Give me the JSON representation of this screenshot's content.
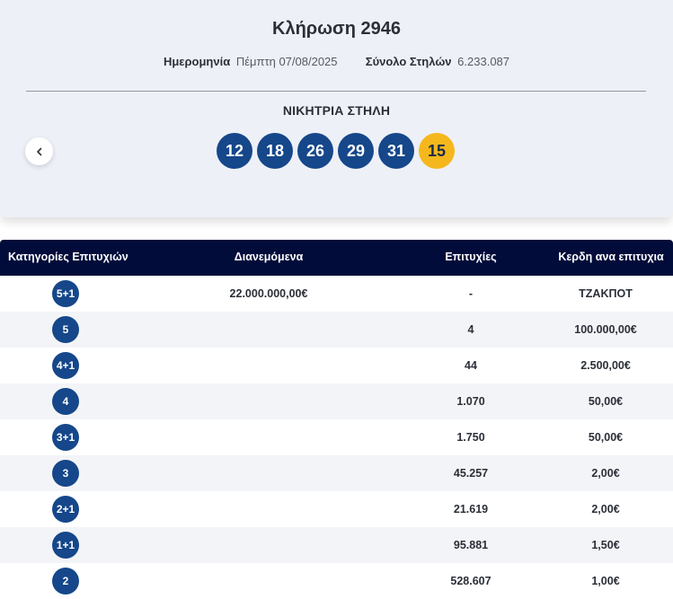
{
  "draw": {
    "title": "Κλήρωση 2946",
    "date_label": "Ημερομηνία",
    "date_value": "Πέμπτη 07/08/2025",
    "columns_label": "Σύνολο Στηλών",
    "columns_value": "6.233.087",
    "winning_label": "ΝΙΚΗΤΡΙΑ ΣΤΗΛΗ",
    "numbers": [
      "12",
      "18",
      "26",
      "29",
      "31"
    ],
    "bonus": "15"
  },
  "table": {
    "headers": {
      "category": "Κατηγορίες Επιτυχιών",
      "distributed": "Διανεμόμενα",
      "winners": "Επιτυχίες",
      "prize": "Κερδη ανα επιτυχια"
    },
    "rows": [
      {
        "category": "5+1",
        "distributed": "22.000.000,00€",
        "winners": "-",
        "prize": "ΤΖΑΚΠΟΤ"
      },
      {
        "category": "5",
        "distributed": "",
        "winners": "4",
        "prize": "100.000,00€"
      },
      {
        "category": "4+1",
        "distributed": "",
        "winners": "44",
        "prize": "2.500,00€"
      },
      {
        "category": "4",
        "distributed": "",
        "winners": "1.070",
        "prize": "50,00€"
      },
      {
        "category": "3+1",
        "distributed": "",
        "winners": "1.750",
        "prize": "50,00€"
      },
      {
        "category": "3",
        "distributed": "",
        "winners": "45.257",
        "prize": "2,00€"
      },
      {
        "category": "2+1",
        "distributed": "",
        "winners": "21.619",
        "prize": "2,00€"
      },
      {
        "category": "1+1",
        "distributed": "",
        "winners": "95.881",
        "prize": "1,50€"
      },
      {
        "category": "2",
        "distributed": "",
        "winners": "528.607",
        "prize": "1,00€"
      }
    ]
  },
  "icons": {
    "prev": "chevron-left-icon"
  },
  "colors": {
    "ball": "#15478a",
    "bonus_ball": "#f5b81c",
    "table_header": "#010c3a"
  }
}
